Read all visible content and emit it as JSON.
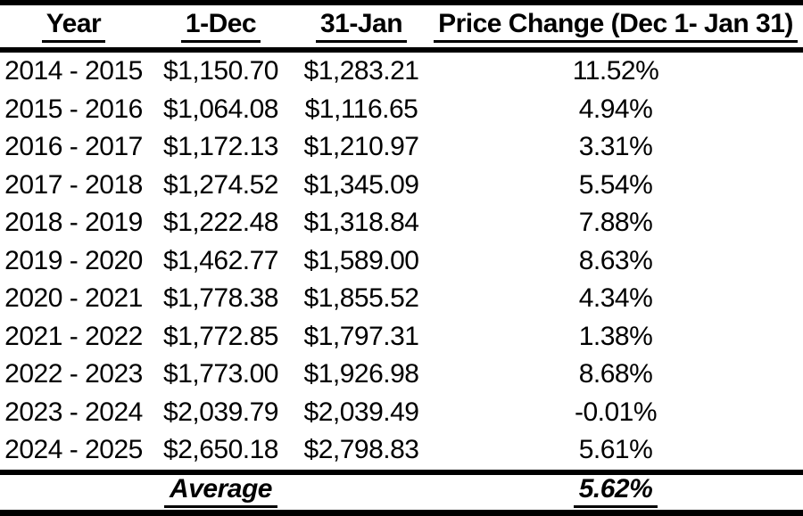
{
  "chart_data": {
    "type": "table",
    "columns": [
      "Year",
      "1-Dec",
      "31-Jan",
      "Price Change (Dec 1- Jan 31)"
    ],
    "rows": [
      [
        "2014 - 2015",
        "$1,150.70",
        "$1,283.21",
        "11.52%"
      ],
      [
        "2015 - 2016",
        "$1,064.08",
        "$1,116.65",
        "4.94%"
      ],
      [
        "2016 - 2017",
        "$1,172.13",
        "$1,210.97",
        "3.31%"
      ],
      [
        "2017 - 2018",
        "$1,274.52",
        "$1,345.09",
        "5.54%"
      ],
      [
        "2018 - 2019",
        "$1,222.48",
        "$1,318.84",
        "7.88%"
      ],
      [
        "2019 - 2020",
        "$1,462.77",
        "$1,589.00",
        "8.63%"
      ],
      [
        "2020 - 2021",
        "$1,778.38",
        "$1,855.52",
        "4.34%"
      ],
      [
        "2021 - 2022",
        "$1,772.85",
        "$1,797.31",
        "1.38%"
      ],
      [
        "2022 - 2023",
        "$1,773.00",
        "$1,926.98",
        "8.68%"
      ],
      [
        "2023 - 2024",
        "$2,039.79",
        "$2,039.49",
        "-0.01%"
      ],
      [
        "2024 - 2025",
        "$2,650.18",
        "$2,798.83",
        "5.61%"
      ]
    ],
    "footer": {
      "label": "Average",
      "value": "5.62%"
    },
    "layout": {
      "grid": "horizontal-rules-only",
      "text_color": "#000000",
      "rule_color": "#000000",
      "background": "#ffffff"
    }
  }
}
